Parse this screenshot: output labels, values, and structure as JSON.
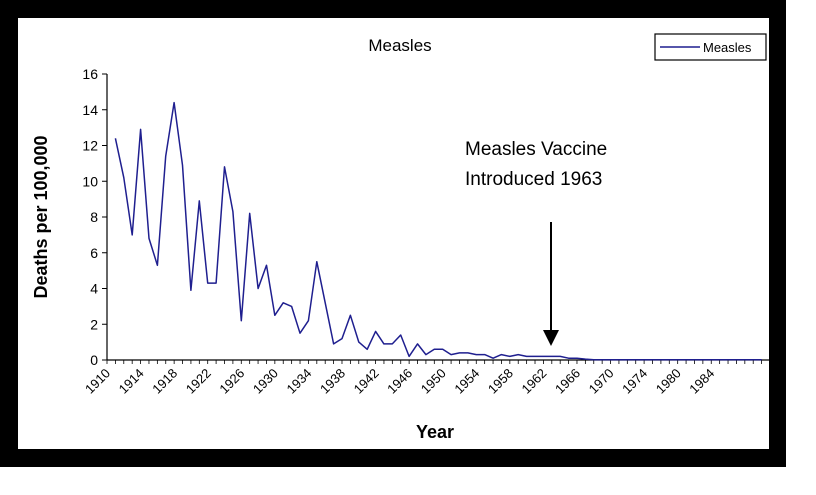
{
  "chart_data": {
    "type": "line",
    "title": "Measles",
    "xlabel": "Year",
    "ylabel": "Deaths per 100,000",
    "xlim": [
      1910,
      1989
    ],
    "ylim": [
      0,
      16
    ],
    "yticks": [
      0,
      2,
      4,
      6,
      8,
      10,
      12,
      14,
      16
    ],
    "xticks": [
      "1910",
      "1914",
      "1918",
      "1922",
      "1926",
      "1930",
      "1934",
      "1938",
      "1942",
      "1946",
      "1950",
      "1954",
      "1958",
      "1962",
      "1966",
      "1970",
      "1974",
      "1980",
      "1984"
    ],
    "legend": {
      "position": "top-right",
      "label": "Measles"
    },
    "annotation": {
      "lines": [
        "Measles Vaccine",
        "Introduced 1963"
      ],
      "arrow_x": 1963,
      "arrow_y": 0.9
    },
    "series": [
      {
        "name": "Measles",
        "color": "#1f1f8f",
        "x": [
          1911,
          1912,
          1913,
          1914,
          1915,
          1916,
          1917,
          1918,
          1919,
          1920,
          1921,
          1922,
          1923,
          1924,
          1925,
          1926,
          1927,
          1928,
          1929,
          1930,
          1931,
          1932,
          1933,
          1934,
          1935,
          1936,
          1937,
          1938,
          1939,
          1940,
          1941,
          1942,
          1943,
          1944,
          1945,
          1946,
          1947,
          1948,
          1949,
          1950,
          1951,
          1952,
          1953,
          1954,
          1955,
          1956,
          1957,
          1958,
          1959,
          1960,
          1961,
          1962,
          1963,
          1964,
          1965,
          1966,
          1967,
          1968,
          1969,
          1970,
          1971,
          1972,
          1973,
          1974,
          1975,
          1976,
          1977,
          1978,
          1979,
          1980,
          1981,
          1982,
          1983,
          1984,
          1985,
          1986,
          1987,
          1988
        ],
        "values": [
          12.4,
          10.2,
          7.0,
          12.9,
          6.8,
          5.3,
          11.4,
          14.4,
          10.9,
          3.9,
          8.9,
          4.3,
          4.3,
          10.8,
          8.3,
          2.2,
          8.2,
          4.0,
          5.3,
          2.5,
          3.2,
          3.0,
          1.5,
          2.2,
          5.5,
          3.2,
          0.9,
          1.2,
          2.5,
          1.0,
          0.6,
          1.6,
          0.9,
          0.9,
          1.4,
          0.2,
          0.9,
          0.3,
          0.6,
          0.6,
          0.3,
          0.4,
          0.4,
          0.3,
          0.3,
          0.1,
          0.3,
          0.2,
          0.3,
          0.2,
          0.2,
          0.2,
          0.2,
          0.2,
          0.1,
          0.1,
          0.05,
          0.01,
          0.01,
          0.01,
          0.01,
          0.01,
          0.01,
          0.01,
          0.01,
          0.01,
          0.01,
          0.01,
          0.01,
          0.01,
          0.01,
          0.01,
          0.01,
          0.01,
          0.01,
          0.01,
          0.01,
          0.01
        ]
      }
    ]
  }
}
